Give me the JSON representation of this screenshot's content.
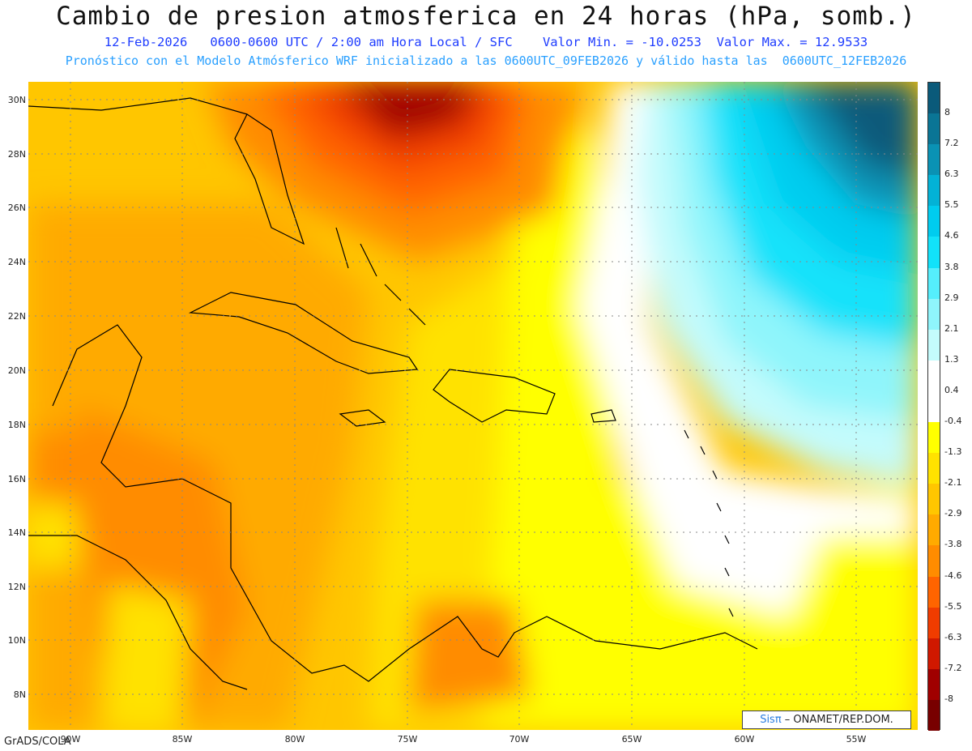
{
  "title": "Cambio de presion atmosferica en 24 horas (hPa, somb.)",
  "subtitle_line1": "12-Feb-2026   0600-0600 UTC / 2:00 am Hora Local / SFC    Valor Min. = -10.0253  Valor Max. = 12.9533",
  "subtitle_line2": "Pronóstico con el Modelo Atmósferico WRF inicializado a las 0600UTC_09FEB2026 y válido hasta las  0600UTC_12FEB2026",
  "lat_labels": [
    "30N",
    "28N",
    "26N",
    "24N",
    "22N",
    "20N",
    "18N",
    "16N",
    "14N",
    "12N",
    "10N",
    "8N"
  ],
  "lon_labels": [
    "90W",
    "85W",
    "80W",
    "75W",
    "70W",
    "65W",
    "60W",
    "55W"
  ],
  "colorbar": {
    "labels": [
      "8",
      "7.2",
      "6.3",
      "5.5",
      "4.6",
      "3.8",
      "2.9",
      "2.1",
      "1.3",
      "0.4",
      "-0.4",
      "-1.3",
      "-2.1",
      "-2.9",
      "-3.8",
      "-4.6",
      "-5.5",
      "-6.3",
      "-7.2",
      "-8"
    ],
    "colors": [
      "#0a5a7a",
      "#0a7595",
      "#0a92b4",
      "#03b2d6",
      "#00ccef",
      "#12e2fa",
      "#55eefc",
      "#8ff5fb",
      "#c4fbfc",
      "#ffffff",
      "#ffffff",
      "#ffff00",
      "#ffe200",
      "#ffc600",
      "#ffaa00",
      "#ff8c00",
      "#ff6400",
      "#f03c00",
      "#d01800",
      "#a00000",
      "#780000"
    ]
  },
  "credit_brand": "Sisπ",
  "credit_text": " – ONAMET/REP.DOM.",
  "software": "GrADS/COLA"
}
